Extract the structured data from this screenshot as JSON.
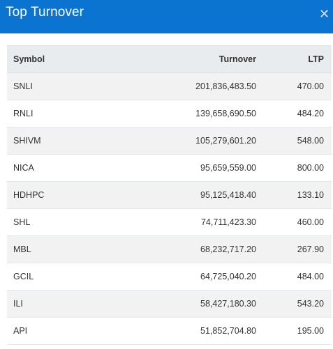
{
  "dialog": {
    "title": "Top Turnover",
    "close_icon": "close-icon"
  },
  "table": {
    "headers": {
      "symbol": "Symbol",
      "turnover": "Turnover",
      "ltp": "LTP"
    },
    "rows": [
      {
        "symbol": "SNLI",
        "turnover": "201,836,483.50",
        "ltp": "470.00"
      },
      {
        "symbol": "RNLI",
        "turnover": "139,658,690.50",
        "ltp": "484.20"
      },
      {
        "symbol": "SHIVM",
        "turnover": "105,279,601.20",
        "ltp": "548.00"
      },
      {
        "symbol": "NICA",
        "turnover": "95,659,559.00",
        "ltp": "800.00"
      },
      {
        "symbol": "HDHPC",
        "turnover": "95,125,418.40",
        "ltp": "133.10"
      },
      {
        "symbol": "SHL",
        "turnover": "74,711,423.30",
        "ltp": "460.00"
      },
      {
        "symbol": "MBL",
        "turnover": "68,232,717.20",
        "ltp": "267.90"
      },
      {
        "symbol": "GCIL",
        "turnover": "64,725,040.20",
        "ltp": "484.00"
      },
      {
        "symbol": "ILI",
        "turnover": "58,427,180.30",
        "ltp": "543.20"
      },
      {
        "symbol": "API",
        "turnover": "51,852,704.80",
        "ltp": "195.00"
      }
    ]
  },
  "colors": {
    "header_bg": "#0b74d1",
    "row_alt": "#f2f2f2",
    "thead_bg": "#e9ecef"
  }
}
